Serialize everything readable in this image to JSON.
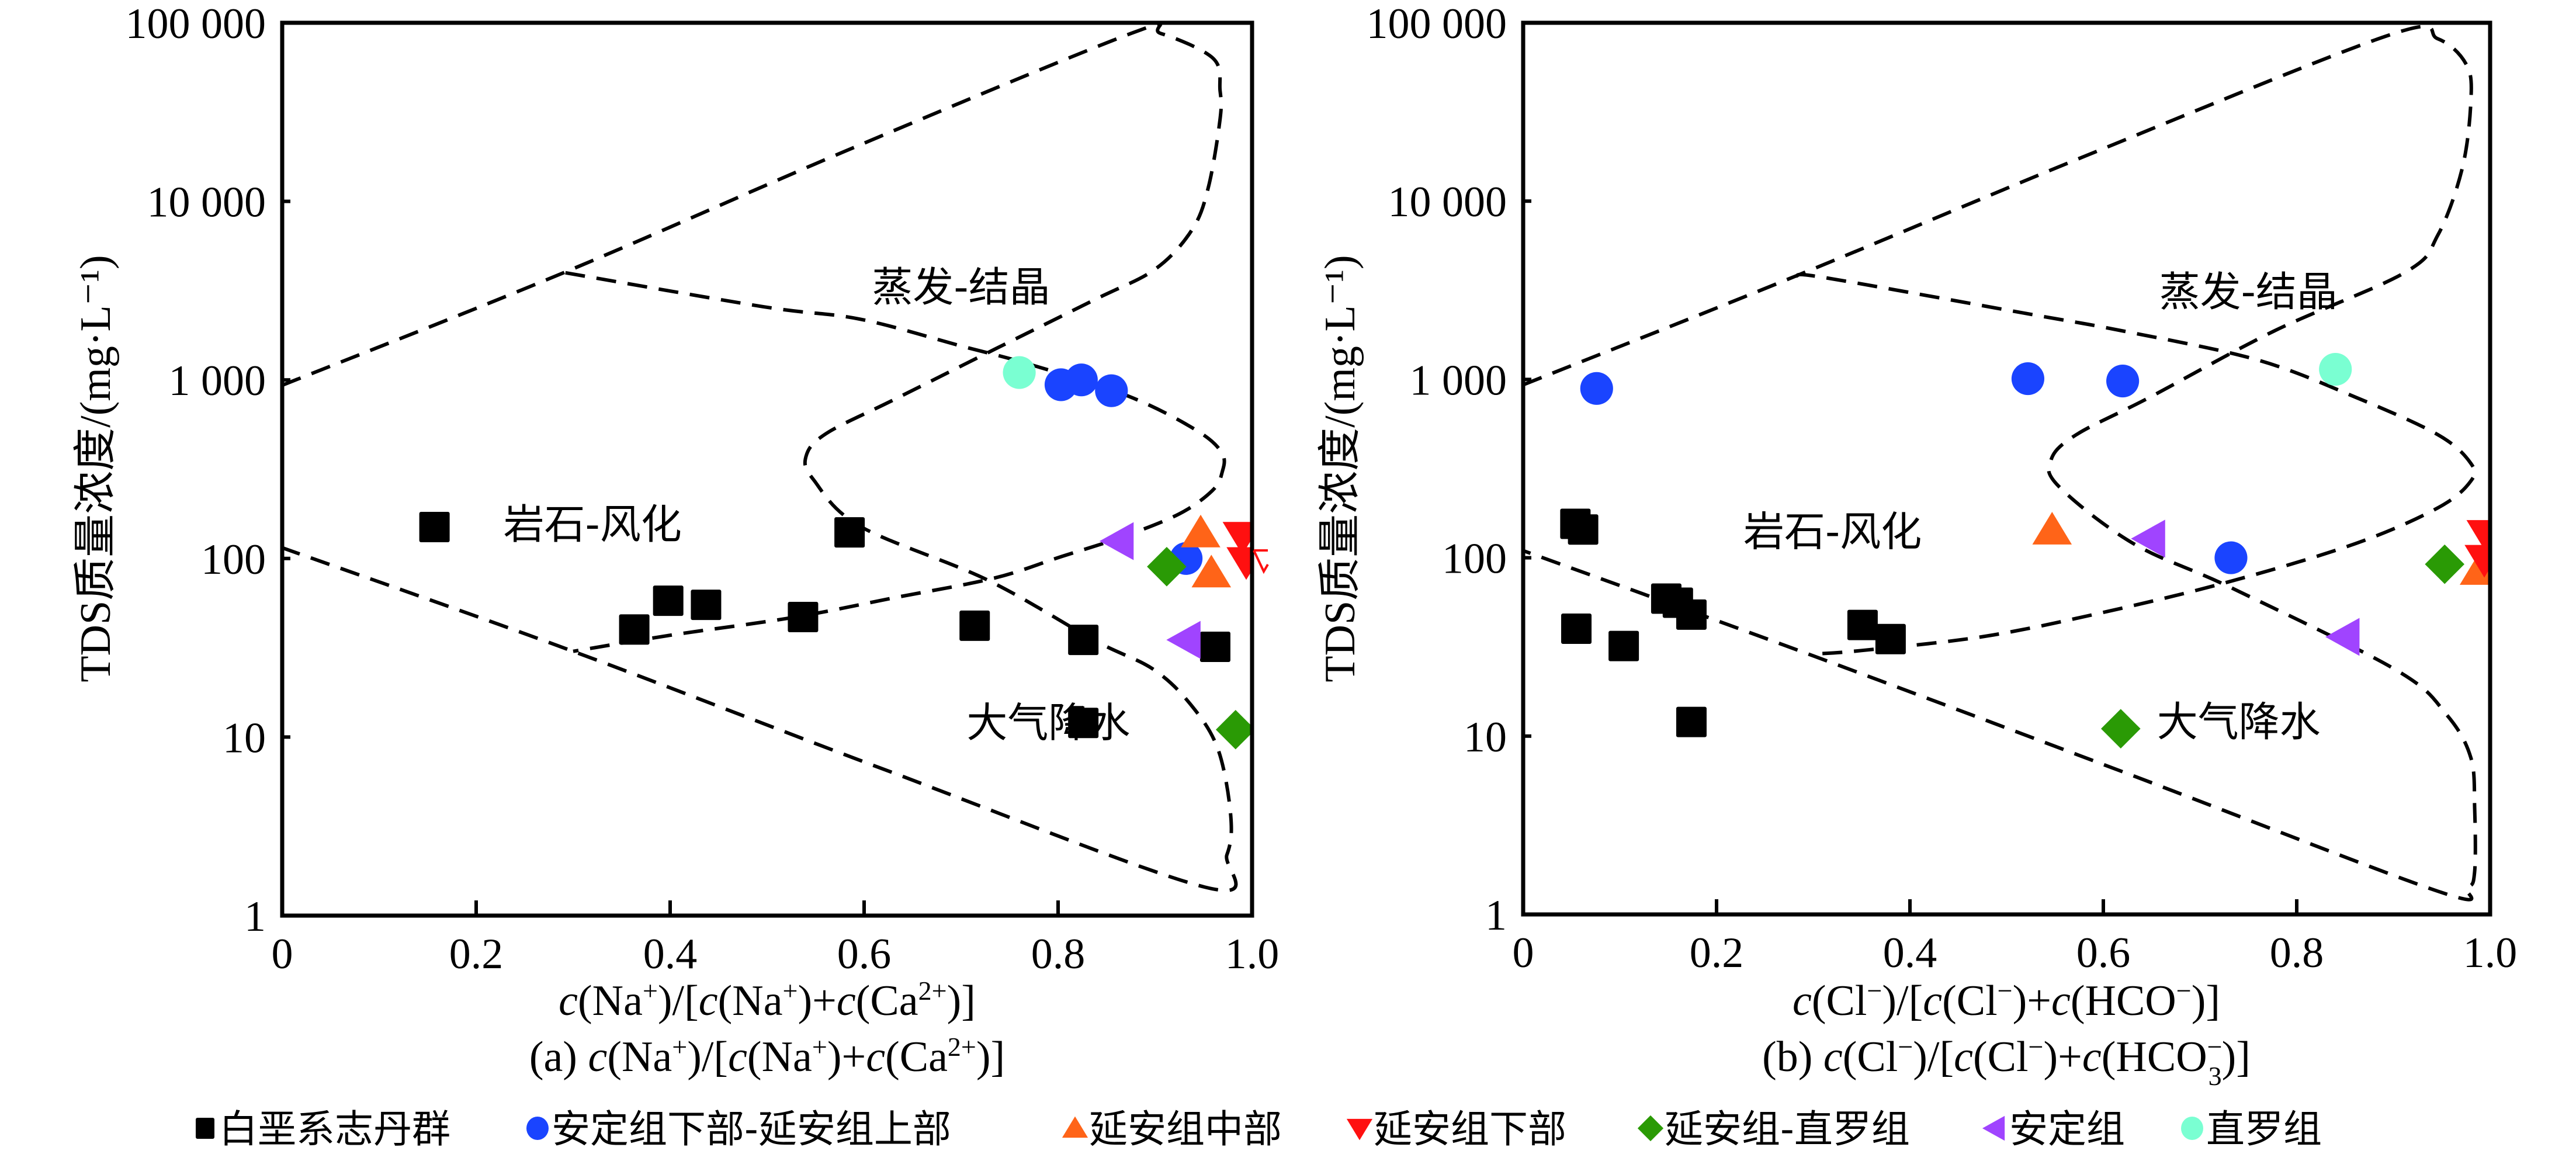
{
  "figure": {
    "legend": [
      {
        "key": "baie",
        "label": "白垩系志丹群",
        "marker": "square",
        "color": "#000000"
      },
      {
        "key": "adx_yas",
        "label": "安定组下部-延安组上部",
        "marker": "circle",
        "color": "#1a44ff"
      },
      {
        "key": "yaz",
        "label": "延安组中部",
        "marker": "triangle-up",
        "color": "#ff6418"
      },
      {
        "key": "yax",
        "label": "延安组下部",
        "marker": "triangle-down",
        "color": "#ff1010"
      },
      {
        "key": "ya_zl",
        "label": "延安组-直罗组",
        "marker": "diamond",
        "color": "#2a9a05"
      },
      {
        "key": "ad",
        "label": "安定组",
        "marker": "triangle-left",
        "color": "#a044ff"
      },
      {
        "key": "zl",
        "label": "直罗组",
        "marker": "circle",
        "color": "#7affd2"
      }
    ]
  },
  "chart_data": [
    {
      "type": "scatter",
      "panel": "a",
      "subtitle": "(a) c(Na⁺)/[c(Na⁺)+c(Ca²⁺)]",
      "xlabel": "c(Na⁺)/[c(Na⁺)+c(Ca²⁺)]",
      "ylabel": "TDS质量浓度/(mg·L⁻¹)",
      "xlim": [
        0,
        1.0
      ],
      "ylim": [
        1,
        100000
      ],
      "yscale": "log",
      "xticks": [
        0,
        0.2,
        0.4,
        0.6,
        0.8,
        1.0
      ],
      "xtick_labels": [
        "0",
        "0.2",
        "0.4",
        "0.6",
        "0.8",
        "1.0"
      ],
      "yticks": [
        1,
        10,
        100,
        1000,
        10000,
        100000
      ],
      "ytick_labels": [
        "1",
        "10",
        "100",
        "1 000",
        "10 000",
        "100 000"
      ],
      "grid": false,
      "legend_position": "bottom",
      "regions": [
        {
          "label": "蒸发-结晶",
          "x": 0.7,
          "y": 3300
        },
        {
          "label": "岩石-风化",
          "x": 0.32,
          "y": 155
        },
        {
          "label": "大气降水",
          "x": 0.79,
          "y": 12
        }
      ],
      "boundaries": [
        {
          "name": "outer-envelope",
          "points": [
            [
              0,
              2.97
            ],
            [
              0.29,
              3.6
            ],
            [
              0.58,
              4.28
            ],
            [
              0.875,
              4.94
            ],
            [
              0.906,
              4.94
            ],
            [
              0.96,
              4.8
            ],
            [
              0.967,
              4.62
            ],
            [
              0.967,
              4.46
            ],
            [
              0.955,
              4.08
            ],
            [
              0.938,
              3.84
            ],
            [
              0.9,
              3.62
            ],
            [
              0.838,
              3.45
            ],
            [
              0.734,
              3.17
            ],
            [
              0.631,
              2.89
            ],
            [
              0.561,
              2.7
            ],
            [
              0.54,
              2.57
            ],
            [
              0.548,
              2.44
            ],
            [
              0.596,
              2.18
            ],
            [
              0.727,
              1.88
            ],
            [
              0.838,
              1.54
            ],
            [
              0.898,
              1.38
            ],
            [
              0.937,
              1.18
            ],
            [
              0.965,
              0.93
            ],
            [
              0.978,
              0.56
            ],
            [
              0.974,
              0.34
            ],
            [
              0.951,
              0.16
            ],
            [
              0.62,
              0.82
            ],
            [
              0.3,
              1.48
            ],
            [
              0,
              2.06
            ]
          ]
        },
        {
          "name": "inner-loop",
          "points": [
            [
              0.292,
              3.6
            ],
            [
              0.496,
              3.41
            ],
            [
              0.596,
              3.34
            ],
            [
              0.7,
              3.19
            ],
            [
              0.769,
              3.09
            ],
            [
              0.872,
              2.91
            ],
            [
              0.942,
              2.72
            ],
            [
              0.969,
              2.59
            ],
            [
              0.969,
              2.48
            ],
            [
              0.959,
              2.38
            ],
            [
              0.925,
              2.25
            ],
            [
              0.866,
              2.12
            ],
            [
              0.803,
              2.01
            ],
            [
              0.734,
              1.89
            ],
            [
              0.631,
              1.78
            ],
            [
              0.527,
              1.67
            ],
            [
              0.4,
              1.57
            ],
            [
              0.3,
              1.48
            ]
          ]
        }
      ],
      "series": [
        {
          "name": "白垩系志丹群",
          "key": "baie",
          "points": [
            [
              0.157,
              150
            ],
            [
              0.585,
              140
            ],
            [
              0.398,
              58
            ],
            [
              0.437,
              55
            ],
            [
              0.363,
              40
            ],
            [
              0.537,
              47
            ],
            [
              0.714,
              42
            ],
            [
              0.826,
              35
            ],
            [
              0.962,
              32
            ],
            [
              0.826,
              12
            ]
          ]
        },
        {
          "name": "安定组下部-延安组上部",
          "key": "adx_yas",
          "points": [
            [
              0.803,
              940
            ],
            [
              0.824,
              1000
            ],
            [
              0.855,
              870
            ],
            [
              0.932,
              100
            ]
          ]
        },
        {
          "name": "延安组中部",
          "key": "yaz",
          "points": [
            [
              0.947,
              139
            ],
            [
              0.958,
              83
            ]
          ]
        },
        {
          "name": "延安组下部",
          "key": "yax",
          "points": [
            [
              0.99,
              133
            ],
            [
              0.994,
              96
            ]
          ]
        },
        {
          "name": "延安组-直罗组",
          "key": "ya_zl",
          "points": [
            [
              0.912,
              90
            ],
            [
              0.983,
              11
            ]
          ]
        },
        {
          "name": "安定组",
          "key": "ad",
          "points": [
            [
              0.863,
              125
            ],
            [
              0.932,
              35
            ]
          ]
        },
        {
          "name": "直罗组",
          "key": "zl",
          "points": [
            [
              0.76,
              1100
            ]
          ]
        }
      ]
    },
    {
      "type": "scatter",
      "panel": "b",
      "subtitle": "(b) c(Cl⁻)/[c(Cl⁻)+c(HCO₃⁻)]",
      "xlabel": "c(Cl⁻)/[c(Cl⁻)+c(HCO⁻)]",
      "ylabel": "TDS质量浓度/(mg·L⁻¹)",
      "xlim": [
        0,
        1.0
      ],
      "ylim": [
        1,
        100000
      ],
      "yscale": "log",
      "xticks": [
        0,
        0.2,
        0.4,
        0.6,
        0.8,
        1.0
      ],
      "xtick_labels": [
        "0",
        "0.2",
        "0.4",
        "0.6",
        "0.8",
        "1.0"
      ],
      "yticks": [
        1,
        10,
        100,
        1000,
        10000,
        100000
      ],
      "ytick_labels": [
        "1",
        "10",
        "100",
        "1 000",
        "10 000",
        "100 000"
      ],
      "grid": false,
      "legend_position": "bottom",
      "regions": [
        {
          "label": "蒸发-结晶",
          "x": 0.75,
          "y": 3100
        },
        {
          "label": "岩石-风化",
          "x": 0.32,
          "y": 140
        },
        {
          "label": "大气降水",
          "x": 0.74,
          "y": 12
        }
      ],
      "boundaries": [
        {
          "name": "outer-envelope",
          "points": [
            [
              0,
              2.97
            ],
            [
              0.282,
              3.58
            ],
            [
              0.58,
              4.25
            ],
            [
              0.895,
              4.93
            ],
            [
              0.946,
              4.91
            ],
            [
              0.976,
              4.76
            ],
            [
              0.98,
              4.55
            ],
            [
              0.971,
              4.18
            ],
            [
              0.946,
              3.81
            ],
            [
              0.912,
              3.6
            ],
            [
              0.776,
              3.27
            ],
            [
              0.648,
              2.9
            ],
            [
              0.572,
              2.69
            ],
            [
              0.546,
              2.55
            ],
            [
              0.554,
              2.4
            ],
            [
              0.631,
              2.08
            ],
            [
              0.733,
              1.83
            ],
            [
              0.903,
              1.37
            ],
            [
              0.955,
              1.12
            ],
            [
              0.98,
              0.88
            ],
            [
              0.984,
              0.6
            ],
            [
              0.984,
              0.24
            ],
            [
              0.976,
              0.15
            ],
            [
              0.946,
              0.13
            ],
            [
              0.62,
              0.8
            ],
            [
              0.3,
              1.45
            ],
            [
              0,
              2.04
            ]
          ]
        },
        {
          "name": "inner-loop",
          "points": [
            [
              0.282,
              3.58
            ],
            [
              0.313,
              3.57
            ],
            [
              0.52,
              3.37
            ],
            [
              0.622,
              3.27
            ],
            [
              0.759,
              3.11
            ],
            [
              0.861,
              2.9
            ],
            [
              0.946,
              2.69
            ],
            [
              0.98,
              2.53
            ],
            [
              0.98,
              2.43
            ],
            [
              0.946,
              2.28
            ],
            [
              0.861,
              2.08
            ],
            [
              0.733,
              1.87
            ],
            [
              0.605,
              1.7
            ],
            [
              0.478,
              1.56
            ],
            [
              0.35,
              1.48
            ],
            [
              0.3,
              1.46
            ]
          ]
        }
      ],
      "series": [
        {
          "name": "白垩系志丹群",
          "key": "baie",
          "points": [
            [
              0.054,
              155
            ],
            [
              0.062,
              144
            ],
            [
              0.148,
              59
            ],
            [
              0.16,
              56
            ],
            [
              0.174,
              48
            ],
            [
              0.055,
              40
            ],
            [
              0.104,
              32
            ],
            [
              0.351,
              42
            ],
            [
              0.38,
              35
            ],
            [
              0.174,
              12
            ]
          ]
        },
        {
          "name": "安定组下部-延安组上部",
          "key": "adx_yas",
          "points": [
            [
              0.076,
              890
            ],
            [
              0.522,
              1010
            ],
            [
              0.62,
              980
            ],
            [
              0.732,
              100
            ]
          ]
        },
        {
          "name": "延安组中部",
          "key": "yaz",
          "points": [
            [
              0.547,
              143
            ],
            [
              0.989,
              85
            ]
          ]
        },
        {
          "name": "延安组下部",
          "key": "yax",
          "points": [
            [
              0.996,
              135
            ],
            [
              0.994,
              98
            ]
          ]
        },
        {
          "name": "延安组-直罗组",
          "key": "ya_zl",
          "points": [
            [
              0.953,
              92
            ],
            [
              0.618,
              11
            ]
          ]
        },
        {
          "name": "安定组",
          "key": "ad",
          "points": [
            [
              0.649,
              128
            ],
            [
              0.85,
              36
            ]
          ]
        },
        {
          "name": "直罗组",
          "key": "zl",
          "points": [
            [
              0.84,
              1140
            ]
          ]
        }
      ]
    }
  ]
}
